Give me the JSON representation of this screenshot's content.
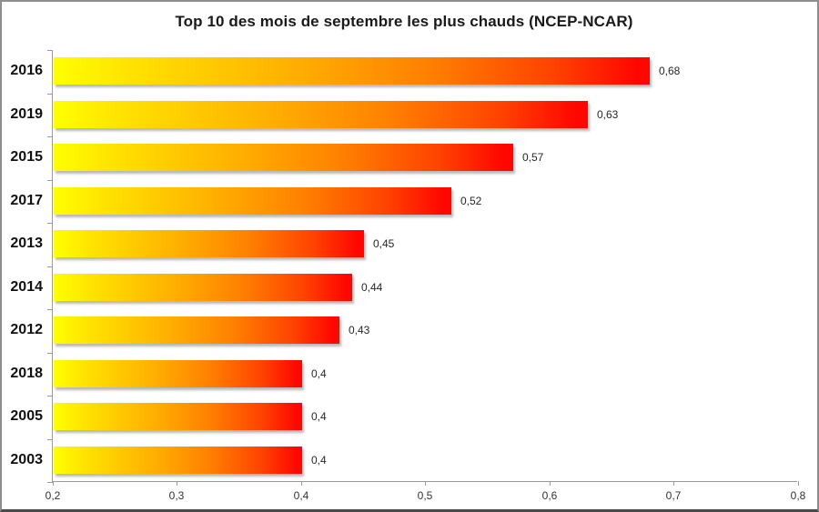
{
  "chart_data": {
    "type": "bar",
    "orientation": "horizontal",
    "title": "Top 10 des mois de septembre les plus chauds (NCEP-NCAR)",
    "categories": [
      "2016",
      "2019",
      "2015",
      "2017",
      "2013",
      "2014",
      "2012",
      "2018",
      "2005",
      "2003"
    ],
    "values": [
      0.68,
      0.63,
      0.57,
      0.52,
      0.45,
      0.44,
      0.43,
      0.4,
      0.4,
      0.4
    ],
    "value_labels": [
      "0,68",
      "0,63",
      "0,57",
      "0,52",
      "0,45",
      "0,44",
      "0,43",
      "0,4",
      "0,4",
      "0,4"
    ],
    "xlabel": "",
    "ylabel": "",
    "xlim": [
      0.2,
      0.8
    ],
    "x_ticks": [
      0.2,
      0.3,
      0.4,
      0.5,
      0.6,
      0.7,
      0.8
    ],
    "x_tick_labels": [
      "0,2",
      "0,3",
      "0,4",
      "0,5",
      "0,6",
      "0,7",
      "0,8"
    ],
    "grid": false,
    "legend": false,
    "colors": {
      "bar_gradient": [
        "#ffff00",
        "#ffe400",
        "#ffb000",
        "#ff8000",
        "#ff4200",
        "#ff0600"
      ],
      "axis": "#9a9a9a",
      "title_text": "#1a1a1a",
      "label_text": "#262626",
      "background": "#ffffff"
    }
  }
}
